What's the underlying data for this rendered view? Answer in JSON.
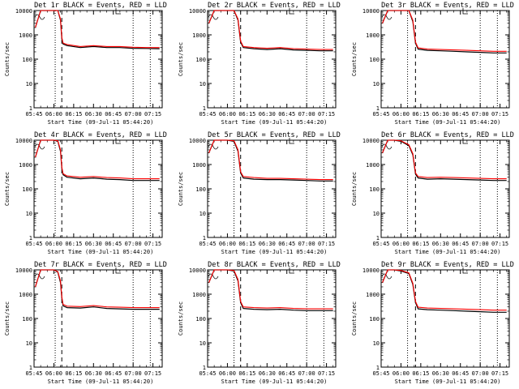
{
  "chart_data": [
    {
      "type": "line",
      "title": "Det 1r BLACK = Events, RED = LLD",
      "xlabel": "Start Time (09-Jul-11 05:44:20)",
      "ylabel": "Counts/sec",
      "y_log_scale": true,
      "ylim": [
        1,
        10000
      ],
      "x_tick_labels": [
        "05:45",
        "06:00",
        "06:15",
        "06:30",
        "06:45",
        "07:00",
        "07:15"
      ],
      "dashed_markers": [
        "06:06"
      ],
      "dotted_markers": [
        "06:01",
        "07:00",
        "07:13"
      ],
      "series": [
        {
          "color": "#000000",
          "x": [
            "05:46",
            "05:50",
            "05:55",
            "06:00",
            "06:03",
            "06:05",
            "06:06",
            "06:07",
            "06:10",
            "06:20",
            "06:30",
            "06:40",
            "06:50",
            "07:00",
            "07:10",
            "07:20"
          ],
          "y": [
            2000,
            10000,
            10000,
            10000,
            10000,
            4000,
            700,
            420,
            360,
            300,
            330,
            300,
            300,
            280,
            275,
            270
          ]
        },
        {
          "color": "#ff0000",
          "x": [
            "05:46",
            "05:50",
            "05:55",
            "06:00",
            "06:03",
            "06:05",
            "06:06",
            "06:07",
            "06:10",
            "06:20",
            "06:30",
            "06:40",
            "06:50",
            "07:00",
            "07:10",
            "07:20"
          ],
          "y": [
            2000,
            10000,
            10000,
            10000,
            10000,
            4500,
            800,
            460,
            400,
            330,
            360,
            330,
            330,
            310,
            300,
            300
          ]
        }
      ]
    },
    {
      "type": "line",
      "title": "Det 2r BLACK = Events, RED = LLD",
      "xlabel": "Start Time (09-Jul-11 05:44:20)",
      "ylabel": "Counts/sec",
      "y_log_scale": true,
      "ylim": [
        1,
        10000
      ],
      "x_tick_labels": [
        "05:45",
        "06:00",
        "06:15",
        "06:30",
        "06:45",
        "07:00",
        "07:15"
      ],
      "dashed_markers": [
        "06:10"
      ],
      "dotted_markers": [
        "06:05",
        "07:00",
        "07:13"
      ],
      "series": [
        {
          "color": "#000000",
          "x": [
            "05:46",
            "05:50",
            "05:55",
            "06:00",
            "06:05",
            "06:08",
            "06:10",
            "06:12",
            "06:20",
            "06:30",
            "06:40",
            "06:50",
            "07:00",
            "07:10",
            "07:20"
          ],
          "y": [
            3000,
            10000,
            10000,
            10000,
            10000,
            4000,
            500,
            300,
            270,
            250,
            270,
            240,
            230,
            220,
            220
          ]
        },
        {
          "color": "#ff0000",
          "x": [
            "05:46",
            "05:50",
            "05:55",
            "06:00",
            "06:05",
            "06:08",
            "06:10",
            "06:12",
            "06:20",
            "06:30",
            "06:40",
            "06:50",
            "07:00",
            "07:10",
            "07:20"
          ],
          "y": [
            3000,
            10000,
            10000,
            10000,
            10000,
            4500,
            560,
            330,
            300,
            280,
            300,
            270,
            260,
            250,
            250
          ]
        }
      ]
    },
    {
      "type": "line",
      "title": "Det 3r BLACK = Events, RED = LLD",
      "xlabel": "Start Time (09-Jul-11 05:44:20)",
      "ylabel": "Counts/sec",
      "y_log_scale": true,
      "ylim": [
        1,
        10000
      ],
      "x_tick_labels": [
        "05:45",
        "06:00",
        "06:15",
        "06:30",
        "06:45",
        "07:00",
        "07:15"
      ],
      "dashed_markers": [
        "06:11"
      ],
      "dotted_markers": [
        "06:05",
        "07:00",
        "07:13"
      ],
      "series": [
        {
          "color": "#000000",
          "x": [
            "05:46",
            "05:50",
            "05:55",
            "06:00",
            "06:06",
            "06:09",
            "06:11",
            "06:13",
            "06:20",
            "06:30",
            "06:40",
            "06:50",
            "07:00",
            "07:10",
            "07:20"
          ],
          "y": [
            3000,
            10000,
            10000,
            10000,
            10000,
            3500,
            450,
            260,
            230,
            220,
            210,
            200,
            190,
            180,
            180
          ]
        },
        {
          "color": "#ff0000",
          "x": [
            "05:46",
            "05:50",
            "05:55",
            "06:00",
            "06:06",
            "06:09",
            "06:11",
            "06:13",
            "06:20",
            "06:30",
            "06:40",
            "06:50",
            "07:00",
            "07:10",
            "07:20"
          ],
          "y": [
            3000,
            10000,
            10000,
            10000,
            10000,
            4000,
            500,
            290,
            260,
            250,
            240,
            230,
            220,
            210,
            210
          ]
        }
      ]
    },
    {
      "type": "line",
      "title": "Det 4r BLACK = Events, RED = LLD",
      "xlabel": "Start Time (09-Jul-11 05:44:20)",
      "ylabel": "Counts/sec",
      "y_log_scale": true,
      "ylim": [
        1,
        10000
      ],
      "x_tick_labels": [
        "05:45",
        "06:00",
        "06:15",
        "06:30",
        "06:45",
        "07:00",
        "07:15"
      ],
      "dashed_markers": [
        "06:06"
      ],
      "dotted_markers": [
        "06:01",
        "07:00",
        "07:13"
      ],
      "series": [
        {
          "color": "#000000",
          "x": [
            "05:46",
            "05:50",
            "05:55",
            "06:00",
            "06:03",
            "06:05",
            "06:06",
            "06:07",
            "06:10",
            "06:20",
            "06:30",
            "06:40",
            "06:50",
            "07:00",
            "07:10",
            "07:20"
          ],
          "y": [
            2000,
            10000,
            10000,
            10000,
            9000,
            3500,
            700,
            380,
            300,
            260,
            280,
            250,
            240,
            220,
            220,
            220
          ]
        },
        {
          "color": "#ff0000",
          "x": [
            "05:46",
            "05:50",
            "05:55",
            "06:00",
            "06:03",
            "06:05",
            "06:06",
            "06:07",
            "06:10",
            "06:20",
            "06:30",
            "06:40",
            "06:50",
            "07:00",
            "07:10",
            "07:20"
          ],
          "y": [
            2000,
            10000,
            10000,
            10000,
            9500,
            4000,
            800,
            420,
            340,
            300,
            320,
            290,
            280,
            260,
            260,
            260
          ]
        }
      ]
    },
    {
      "type": "line",
      "title": "Det 5r BLACK = Events, RED = LLD",
      "xlabel": "Start Time (09-Jul-11 05:44:20)",
      "ylabel": "Counts/sec",
      "y_log_scale": true,
      "ylim": [
        1,
        10000
      ],
      "x_tick_labels": [
        "05:45",
        "06:00",
        "06:15",
        "06:30",
        "06:45",
        "07:00",
        "07:15"
      ],
      "dashed_markers": [
        "06:10"
      ],
      "dotted_markers": [
        "06:05",
        "07:00",
        "07:13"
      ],
      "series": [
        {
          "color": "#000000",
          "x": [
            "05:46",
            "05:50",
            "05:55",
            "06:00",
            "06:05",
            "06:08",
            "06:10",
            "06:12",
            "06:20",
            "06:30",
            "06:40",
            "06:50",
            "07:00",
            "07:10",
            "07:20"
          ],
          "y": [
            3000,
            10000,
            10000,
            10000,
            9000,
            3500,
            450,
            280,
            250,
            240,
            240,
            230,
            220,
            210,
            210
          ]
        },
        {
          "color": "#ff0000",
          "x": [
            "05:46",
            "05:50",
            "05:55",
            "06:00",
            "06:05",
            "06:08",
            "06:10",
            "06:12",
            "06:20",
            "06:30",
            "06:40",
            "06:50",
            "07:00",
            "07:10",
            "07:20"
          ],
          "y": [
            3000,
            10000,
            10000,
            10000,
            9500,
            4000,
            500,
            320,
            290,
            270,
            270,
            260,
            250,
            240,
            240
          ]
        }
      ]
    },
    {
      "type": "line",
      "title": "Det 6r BLACK = Events, RED = LLD",
      "xlabel": "Start Time (09-Jul-11 05:44:20)",
      "ylabel": "Counts/sec",
      "y_log_scale": true,
      "ylim": [
        1,
        10000
      ],
      "x_tick_labels": [
        "05:45",
        "06:00",
        "06:15",
        "06:30",
        "06:45",
        "07:00",
        "07:15"
      ],
      "dashed_markers": [
        "06:11"
      ],
      "dotted_markers": [
        "06:05",
        "07:00",
        "07:13"
      ],
      "series": [
        {
          "color": "#000000",
          "x": [
            "05:46",
            "05:50",
            "05:55",
            "06:00",
            "06:06",
            "06:09",
            "06:11",
            "06:13",
            "06:20",
            "06:30",
            "06:40",
            "06:50",
            "07:00",
            "07:10",
            "07:20"
          ],
          "y": [
            3000,
            10000,
            10000,
            9000,
            6000,
            2500,
            400,
            280,
            250,
            260,
            250,
            240,
            230,
            220,
            220
          ]
        },
        {
          "color": "#ff0000",
          "x": [
            "05:46",
            "05:50",
            "05:55",
            "06:00",
            "06:06",
            "06:09",
            "06:11",
            "06:13",
            "06:20",
            "06:30",
            "06:40",
            "06:50",
            "07:00",
            "07:10",
            "07:20"
          ],
          "y": [
            3000,
            10000,
            10000,
            9500,
            6500,
            2800,
            450,
            320,
            290,
            300,
            290,
            280,
            270,
            260,
            260
          ]
        }
      ]
    },
    {
      "type": "line",
      "title": "Det 7r BLACK = Events, RED = LLD",
      "xlabel": "Start Time (09-Jul-11 05:44:20)",
      "ylabel": "Counts/sec",
      "y_log_scale": true,
      "ylim": [
        1,
        10000
      ],
      "x_tick_labels": [
        "05:45",
        "06:00",
        "06:15",
        "06:30",
        "06:45",
        "07:00",
        "07:15"
      ],
      "dashed_markers": [
        "06:06"
      ],
      "dotted_markers": [
        "06:01",
        "07:00",
        "07:13"
      ],
      "series": [
        {
          "color": "#000000",
          "x": [
            "05:46",
            "05:50",
            "05:55",
            "06:00",
            "06:03",
            "06:05",
            "06:06",
            "06:07",
            "06:10",
            "06:20",
            "06:30",
            "06:40",
            "06:50",
            "07:00",
            "07:10",
            "07:20"
          ],
          "y": [
            2000,
            10000,
            10000,
            10000,
            8000,
            3000,
            700,
            330,
            280,
            270,
            300,
            260,
            250,
            240,
            240,
            240
          ]
        },
        {
          "color": "#ff0000",
          "x": [
            "05:46",
            "05:50",
            "05:55",
            "06:00",
            "06:03",
            "06:05",
            "06:06",
            "06:07",
            "06:10",
            "06:20",
            "06:30",
            "06:40",
            "06:50",
            "07:00",
            "07:10",
            "07:20"
          ],
          "y": [
            2000,
            10000,
            10000,
            10000,
            8500,
            3500,
            800,
            380,
            320,
            310,
            340,
            300,
            290,
            280,
            280,
            280
          ]
        }
      ]
    },
    {
      "type": "line",
      "title": "Det 8r BLACK = Events, RED = LLD",
      "xlabel": "Start Time (09-Jul-11 05:44:20)",
      "ylabel": "Counts/sec",
      "y_log_scale": true,
      "ylim": [
        1,
        10000
      ],
      "x_tick_labels": [
        "05:45",
        "06:00",
        "06:15",
        "06:30",
        "06:45",
        "07:00",
        "07:15"
      ],
      "dashed_markers": [
        "06:10"
      ],
      "dotted_markers": [
        "06:05",
        "07:00",
        "07:13"
      ],
      "series": [
        {
          "color": "#000000",
          "x": [
            "05:46",
            "05:50",
            "05:55",
            "06:00",
            "06:05",
            "06:08",
            "06:10",
            "06:12",
            "06:20",
            "06:30",
            "06:40",
            "06:50",
            "07:00",
            "07:10",
            "07:20"
          ],
          "y": [
            3000,
            10000,
            10000,
            10000,
            9000,
            3500,
            450,
            260,
            240,
            230,
            240,
            220,
            210,
            210,
            210
          ]
        },
        {
          "color": "#ff0000",
          "x": [
            "05:46",
            "05:50",
            "05:55",
            "06:00",
            "06:05",
            "06:08",
            "06:10",
            "06:12",
            "06:20",
            "06:30",
            "06:40",
            "06:50",
            "07:00",
            "07:10",
            "07:20"
          ],
          "y": [
            3000,
            10000,
            10000,
            10000,
            9500,
            4000,
            500,
            300,
            280,
            270,
            280,
            260,
            250,
            250,
            250
          ]
        }
      ]
    },
    {
      "type": "line",
      "title": "Det 9r BLACK = Events, RED = LLD",
      "xlabel": "Start Time (09-Jul-11 05:44:20)",
      "ylabel": "Counts/sec",
      "y_log_scale": true,
      "ylim": [
        1,
        10000
      ],
      "x_tick_labels": [
        "05:45",
        "06:00",
        "06:15",
        "06:30",
        "06:45",
        "07:00",
        "07:15"
      ],
      "dashed_markers": [
        "06:11"
      ],
      "dotted_markers": [
        "06:05",
        "07:00",
        "07:13"
      ],
      "series": [
        {
          "color": "#000000",
          "x": [
            "05:46",
            "05:50",
            "05:55",
            "06:00",
            "06:06",
            "06:09",
            "06:11",
            "06:13",
            "06:20",
            "06:30",
            "06:40",
            "06:50",
            "07:00",
            "07:10",
            "07:20"
          ],
          "y": [
            3000,
            10000,
            10000,
            9000,
            7000,
            2500,
            450,
            250,
            230,
            220,
            210,
            200,
            190,
            180,
            180
          ]
        },
        {
          "color": "#ff0000",
          "x": [
            "05:46",
            "05:50",
            "05:55",
            "06:00",
            "06:06",
            "06:09",
            "06:11",
            "06:13",
            "06:20",
            "06:30",
            "06:40",
            "06:50",
            "07:00",
            "07:10",
            "07:20"
          ],
          "y": [
            3000,
            10000,
            10000,
            9500,
            7500,
            2800,
            500,
            290,
            270,
            260,
            250,
            240,
            230,
            220,
            220
          ]
        }
      ]
    }
  ]
}
